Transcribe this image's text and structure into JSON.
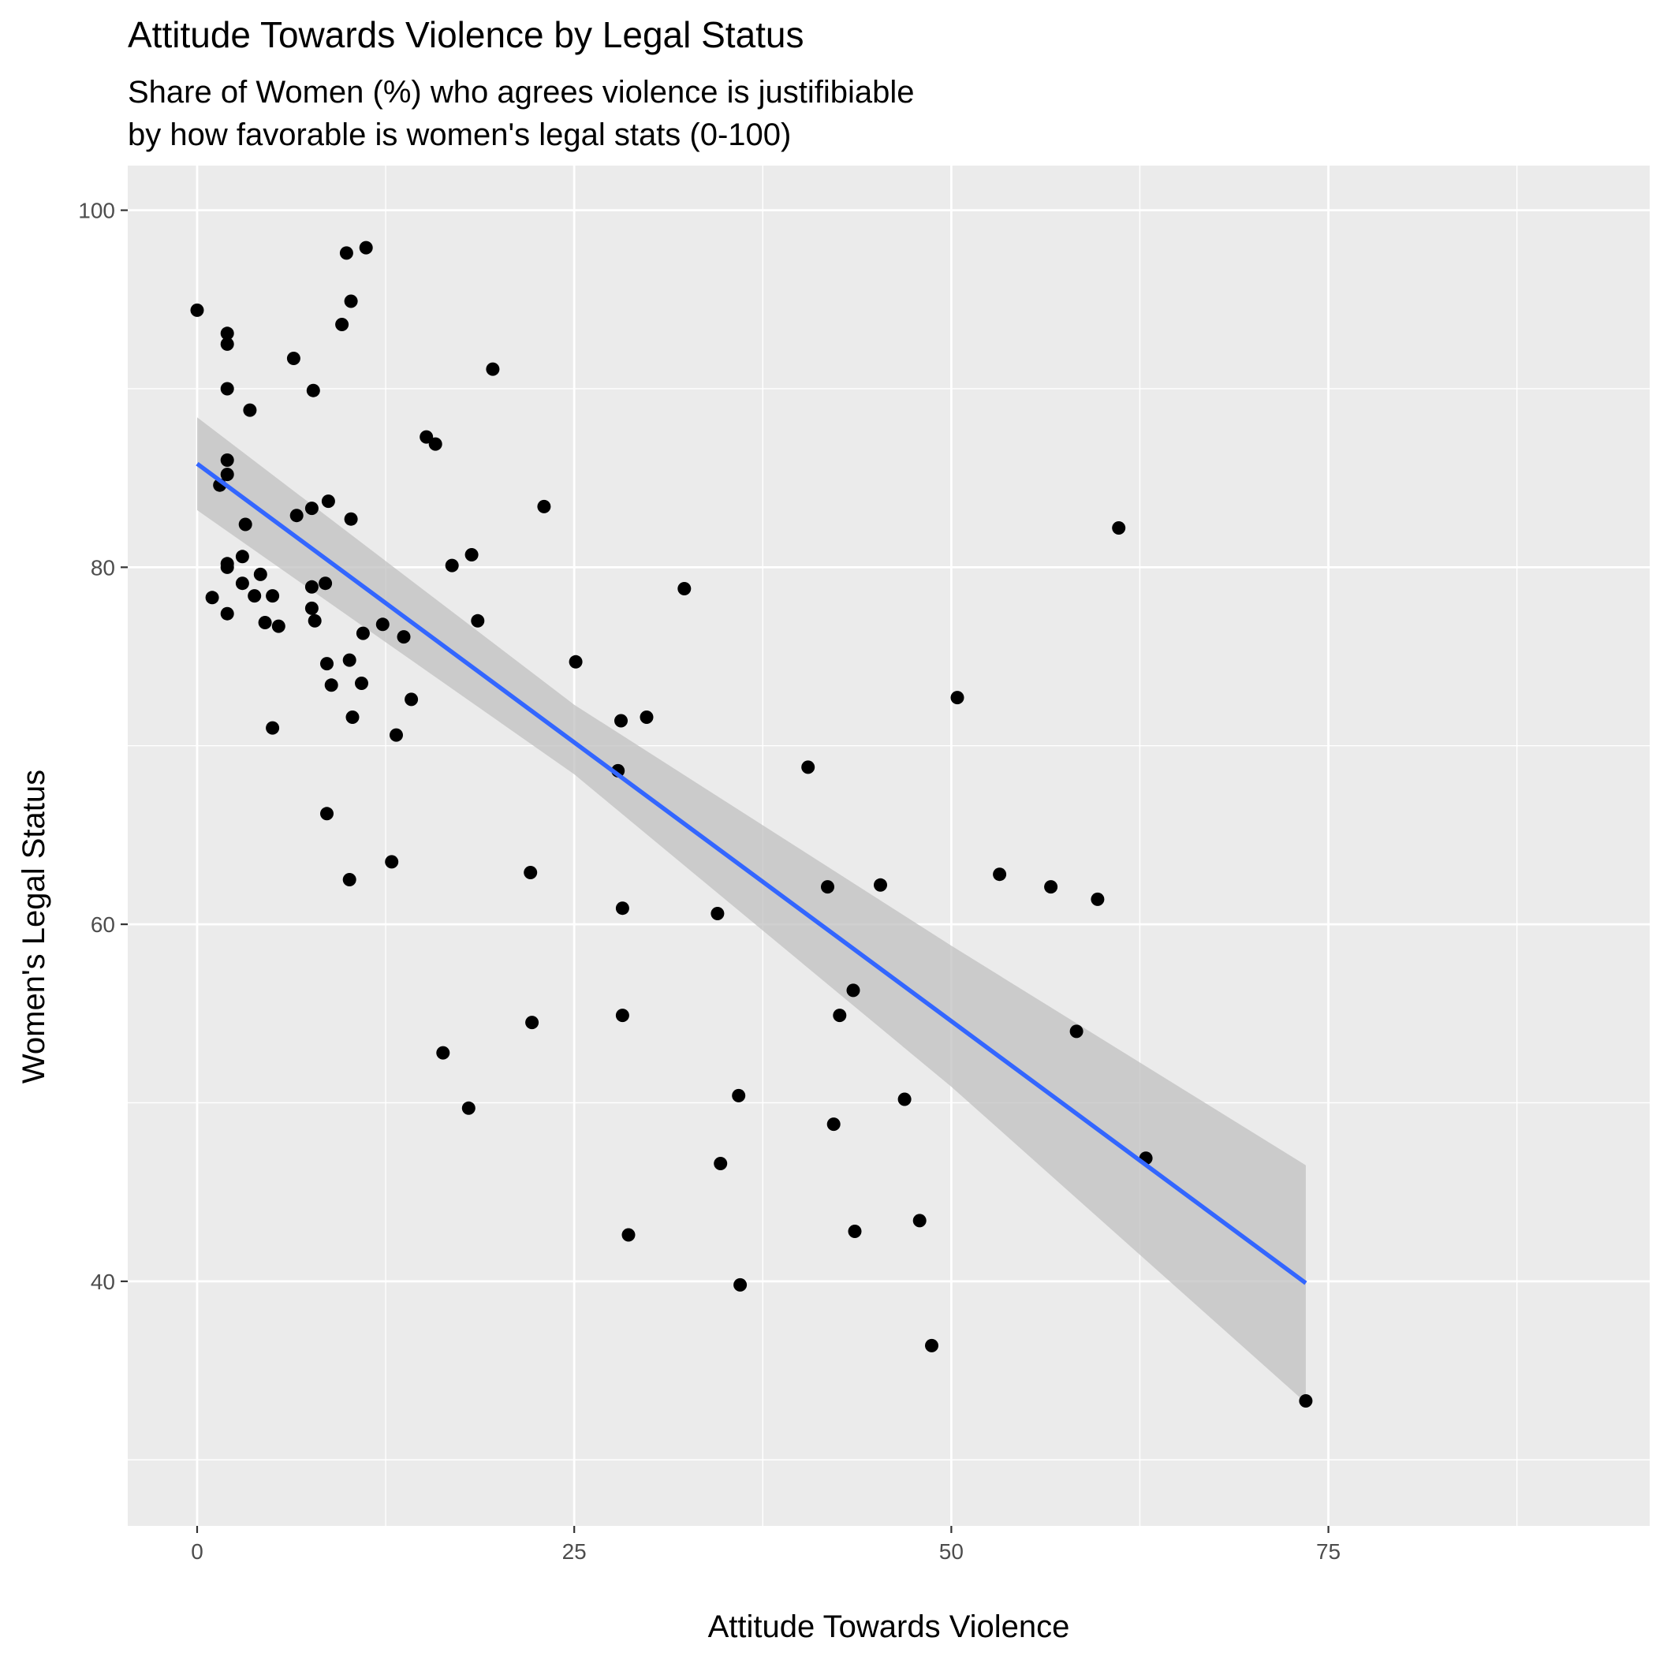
{
  "chart_data": {
    "type": "scatter",
    "title": "Attitude Towards Violence by Legal Status",
    "subtitle_lines": [
      "Share of Women (%) who agrees violence is justifibiable",
      "by how favorable is women's legal stats (0-100)"
    ],
    "xlabel": "Attitude Towards Violence",
    "ylabel": "Women's Legal Status",
    "xlim": [
      -4.6,
      96.3
    ],
    "ylim": [
      26.3,
      102.5
    ],
    "x_ticks": [
      0,
      25,
      50,
      75
    ],
    "x_tick_labels": [
      "0",
      "25",
      "50",
      "75"
    ],
    "x_minor_ticks": [
      12.5,
      37.5,
      62.5,
      87.5
    ],
    "y_ticks": [
      40,
      60,
      80,
      100
    ],
    "y_tick_labels": [
      "40",
      "60",
      "80",
      "100"
    ],
    "y_minor_ticks": [
      30,
      50,
      70,
      90
    ],
    "grid": true,
    "colors": {
      "panel": "#ebebeb",
      "grid": "#ffffff",
      "points": "#000000",
      "fit_line": "#3366ff",
      "ribbon": "#bebebe"
    },
    "points": [
      [
        0,
        94.4
      ],
      [
        2,
        93.1
      ],
      [
        2,
        92.5
      ],
      [
        2,
        90.0
      ],
      [
        3.5,
        88.8
      ],
      [
        2,
        86.0
      ],
      [
        2,
        85.2
      ],
      [
        1.5,
        84.6
      ],
      [
        3.2,
        82.4
      ],
      [
        3,
        80.6
      ],
      [
        2,
        80.2
      ],
      [
        2,
        80.0
      ],
      [
        4.2,
        79.6
      ],
      [
        3,
        79.1
      ],
      [
        1,
        78.3
      ],
      [
        3.8,
        78.4
      ],
      [
        5,
        78.4
      ],
      [
        2,
        77.4
      ],
      [
        4.5,
        76.9
      ],
      [
        5.4,
        76.7
      ],
      [
        5,
        71.0
      ],
      [
        6.4,
        91.7
      ],
      [
        7.7,
        89.9
      ],
      [
        6.6,
        82.9
      ],
      [
        7.6,
        83.3
      ],
      [
        8.7,
        83.7
      ],
      [
        7.6,
        78.9
      ],
      [
        8.5,
        79.1
      ],
      [
        7.6,
        77.7
      ],
      [
        7.8,
        77.0
      ],
      [
        8.6,
        74.6
      ],
      [
        8.9,
        73.4
      ],
      [
        9.9,
        97.6
      ],
      [
        11.2,
        97.9
      ],
      [
        10.2,
        94.9
      ],
      [
        9.6,
        93.6
      ],
      [
        10.2,
        82.7
      ],
      [
        10.1,
        74.8
      ],
      [
        11.0,
        76.3
      ],
      [
        10.9,
        73.5
      ],
      [
        10.3,
        71.6
      ],
      [
        8.6,
        66.2
      ],
      [
        10.1,
        62.5
      ],
      [
        12.3,
        76.8
      ],
      [
        13.7,
        76.1
      ],
      [
        13.2,
        70.6
      ],
      [
        14.2,
        72.6
      ],
      [
        12.9,
        63.5
      ],
      [
        15.2,
        87.3
      ],
      [
        15.8,
        86.9
      ],
      [
        16.9,
        80.1
      ],
      [
        18.2,
        80.7
      ],
      [
        18.6,
        77.0
      ],
      [
        19.6,
        91.1
      ],
      [
        23.0,
        83.4
      ],
      [
        16.3,
        52.8
      ],
      [
        18.0,
        49.7
      ],
      [
        22.1,
        62.9
      ],
      [
        22.2,
        54.5
      ],
      [
        25.1,
        74.7
      ],
      [
        28.1,
        71.4
      ],
      [
        27.9,
        68.6
      ],
      [
        29.8,
        71.6
      ],
      [
        28.2,
        60.9
      ],
      [
        28.2,
        54.9
      ],
      [
        28.6,
        42.6
      ],
      [
        32.3,
        78.8
      ],
      [
        34.5,
        60.6
      ],
      [
        34.7,
        46.6
      ],
      [
        35.9,
        50.4
      ],
      [
        36.0,
        39.8
      ],
      [
        40.5,
        68.8
      ],
      [
        41.8,
        62.1
      ],
      [
        42.6,
        54.9
      ],
      [
        42.2,
        48.8
      ],
      [
        43.5,
        56.3
      ],
      [
        43.6,
        42.8
      ],
      [
        45.3,
        62.2
      ],
      [
        46.9,
        50.2
      ],
      [
        47.9,
        43.4
      ],
      [
        48.7,
        36.4
      ],
      [
        50.4,
        72.7
      ],
      [
        53.2,
        62.8
      ],
      [
        56.6,
        62.1
      ],
      [
        58.3,
        54.0
      ],
      [
        59.7,
        61.4
      ],
      [
        61.1,
        82.2
      ],
      [
        62.9,
        46.9
      ],
      [
        73.5,
        33.3
      ]
    ],
    "fit_line": {
      "x": [
        0,
        73.5
      ],
      "y": [
        85.8,
        39.9
      ]
    },
    "confidence_band": {
      "x": [
        0,
        25,
        50,
        73.5
      ],
      "upper": [
        88.4,
        72.3,
        58.8,
        46.5
      ],
      "lower": [
        83.2,
        68.4,
        50.9,
        33.2
      ]
    }
  }
}
